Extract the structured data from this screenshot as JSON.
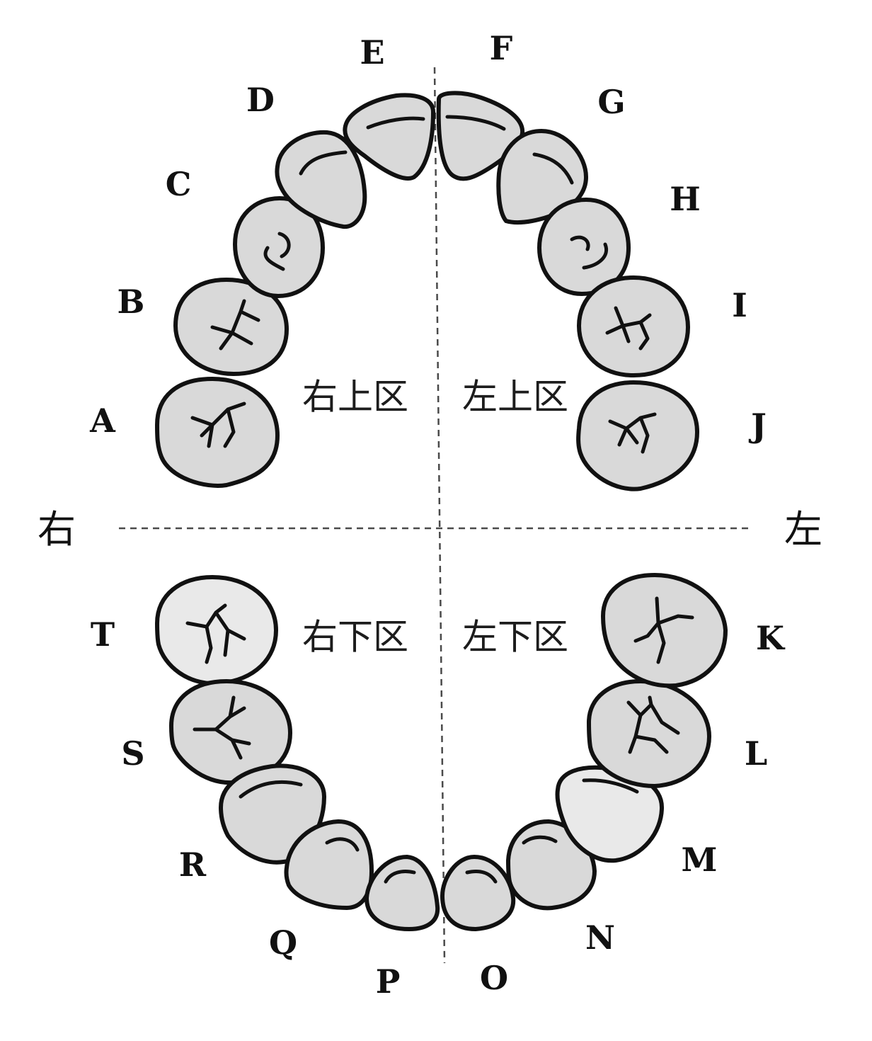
{
  "teeth": [
    {
      "id": "A",
      "label": "A"
    },
    {
      "id": "B",
      "label": "B"
    },
    {
      "id": "C",
      "label": "C"
    },
    {
      "id": "D",
      "label": "D"
    },
    {
      "id": "E",
      "label": "E"
    },
    {
      "id": "F",
      "label": "F"
    },
    {
      "id": "G",
      "label": "G"
    },
    {
      "id": "H",
      "label": "H"
    },
    {
      "id": "I",
      "label": "I"
    },
    {
      "id": "J",
      "label": "J"
    },
    {
      "id": "K",
      "label": "K"
    },
    {
      "id": "L",
      "label": "L"
    },
    {
      "id": "M",
      "label": "M"
    },
    {
      "id": "N",
      "label": "N"
    },
    {
      "id": "O",
      "label": "O"
    },
    {
      "id": "P",
      "label": "P"
    },
    {
      "id": "Q",
      "label": "Q"
    },
    {
      "id": "R",
      "label": "R"
    },
    {
      "id": "S",
      "label": "S"
    },
    {
      "id": "T",
      "label": "T"
    }
  ],
  "zones": {
    "upper_right": "右上区",
    "upper_left": "左上区",
    "lower_right": "右下区",
    "lower_left": "左下区"
  },
  "sides": {
    "right": "右",
    "left": "左"
  }
}
